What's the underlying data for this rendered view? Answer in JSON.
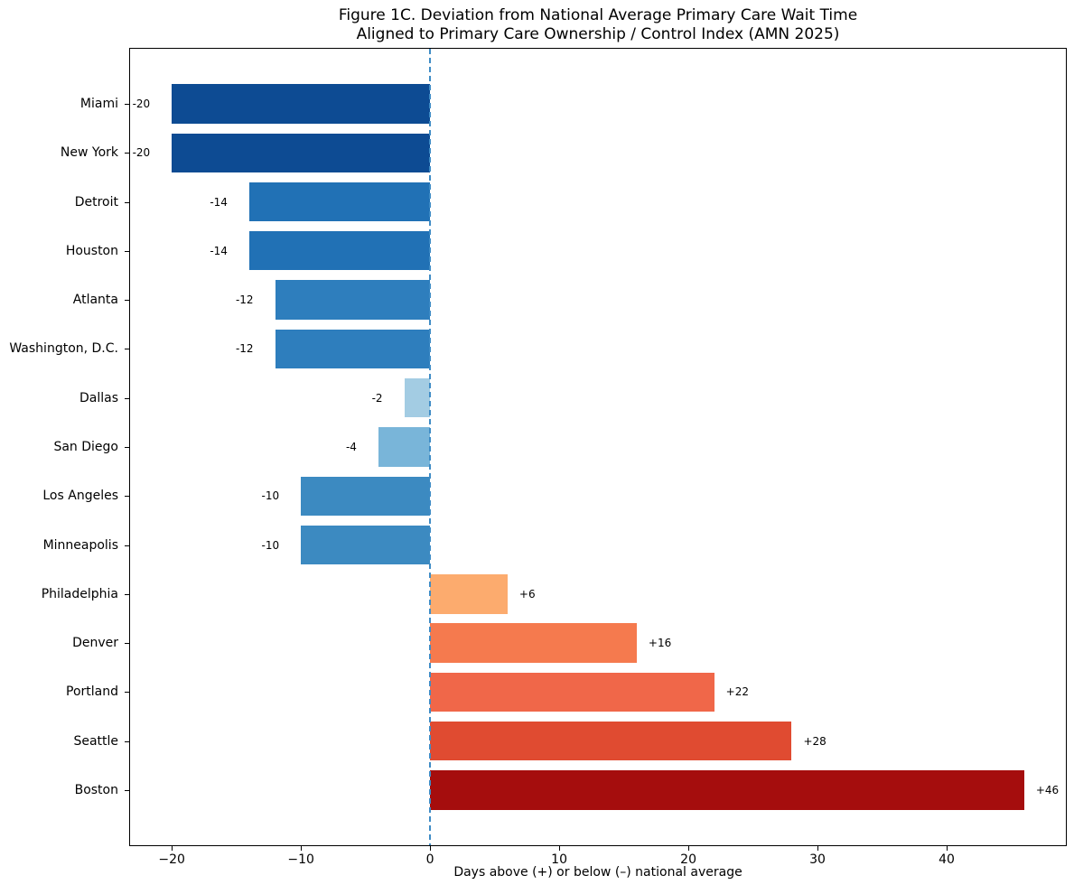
{
  "title": {
    "line1": "Figure 1C. Deviation from National Average Primary Care Wait Time",
    "line2": "Aligned to Primary Care Ownership / Control Index (AMN 2025)"
  },
  "chart_data": {
    "type": "bar",
    "orientation": "horizontal",
    "title": "Figure 1C. Deviation from National Average Primary Care Wait Time Aligned to Primary Care Ownership / Control Index (AMN 2025)",
    "xlabel": "Days above (+) or below (–) national average",
    "ylabel": "",
    "categories": [
      "Miami",
      "New York",
      "Detroit",
      "Houston",
      "Atlanta",
      "Washington, D.C.",
      "Dallas",
      "San Diego",
      "Los Angeles",
      "Minneapolis",
      "Philadelphia",
      "Denver",
      "Portland",
      "Seattle",
      "Boston"
    ],
    "values": [
      -20,
      -20,
      -14,
      -14,
      -12,
      -12,
      -2,
      -4,
      -10,
      -10,
      6,
      16,
      22,
      28,
      46
    ],
    "value_labels": [
      "-20",
      "-20",
      "-14",
      "-14",
      "-12",
      "-12",
      "-2",
      "-4",
      "-10",
      "-10",
      "+6",
      "+16",
      "+22",
      "+28",
      "+46"
    ],
    "bar_colors": [
      "#0d4b93",
      "#0d4b93",
      "#2171b5",
      "#2171b5",
      "#2e7ebd",
      "#2e7ebd",
      "#a3cce3",
      "#79b5d9",
      "#3c8ac1",
      "#3c8ac1",
      "#fcab6e",
      "#f57a4e",
      "#f06749",
      "#e04b31",
      "#a50d0d"
    ],
    "xlim": [
      -23.3,
      49.3
    ],
    "xticks": [
      -20,
      -10,
      0,
      10,
      20,
      30,
      40
    ],
    "xtick_labels": [
      "−20",
      "−10",
      "0",
      "10",
      "20",
      "30",
      "40"
    ],
    "zero_line": {
      "x": 0,
      "style": "dashed",
      "color": "#3f8cc6"
    },
    "grid": false,
    "legend": "none",
    "frame": "full-box",
    "spine_color": "#000000",
    "text_color": "#000000"
  }
}
